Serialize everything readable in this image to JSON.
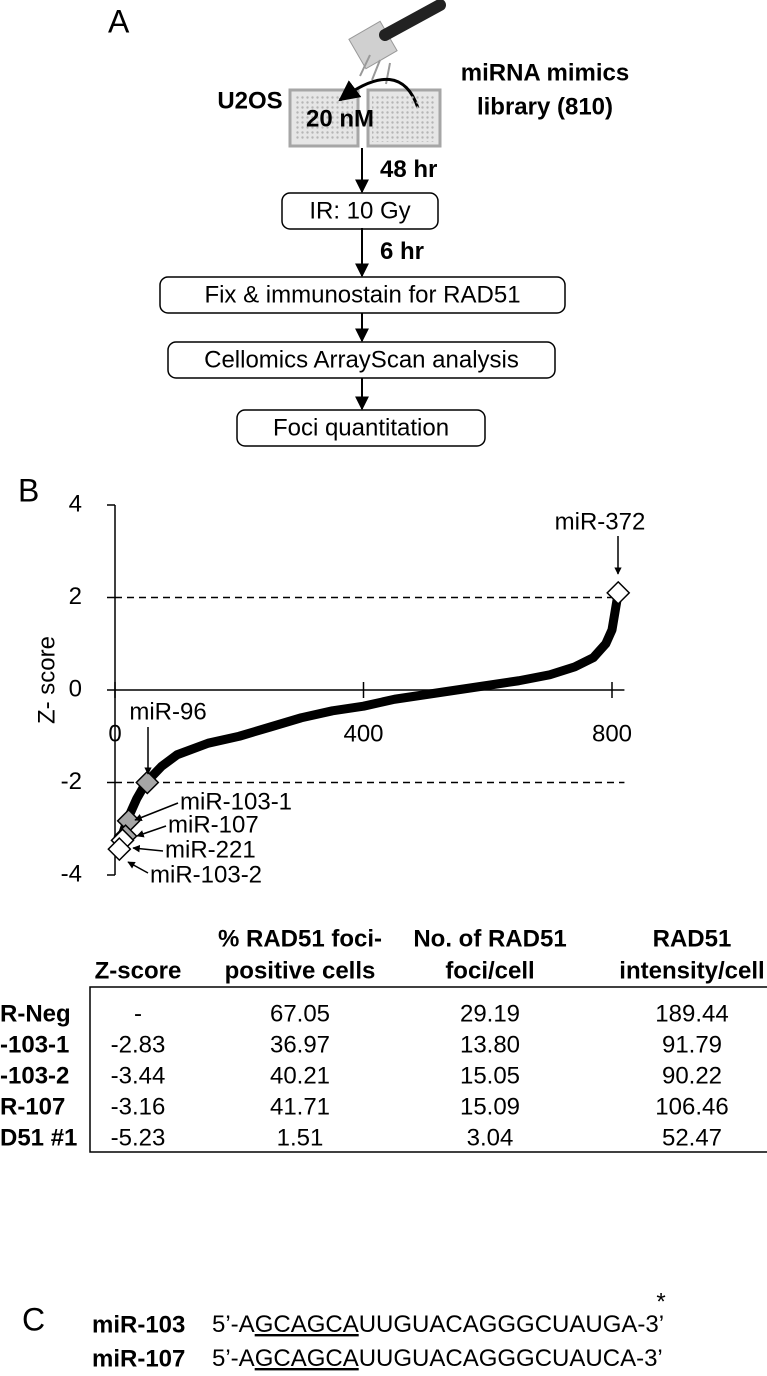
{
  "panel_a": {
    "label": "A",
    "left_label": "U2OS",
    "right_label": [
      "miRNA mimics",
      "library (810)"
    ],
    "dose": "20 nM",
    "steps": [
      {
        "arrow": "48 hr",
        "box": "IR: 10 Gy"
      },
      {
        "arrow": "6 hr",
        "box": "Fix & immunostain for RAD51"
      },
      {
        "arrow": null,
        "box": "Cellomics ArrayScan analysis"
      },
      {
        "arrow": null,
        "box": "Foci quantitation"
      }
    ]
  },
  "chart_data": {
    "type": "line",
    "panel_label": "B",
    "ylabel": "Z- score",
    "x": [
      5,
      10,
      20,
      35,
      50,
      75,
      100,
      150,
      200,
      250,
      300,
      350,
      400,
      450,
      500,
      550,
      600,
      650,
      700,
      740,
      770,
      790,
      800,
      805,
      810
    ],
    "values": [
      -3.4,
      -3.2,
      -2.8,
      -2.35,
      -2.0,
      -1.65,
      -1.4,
      -1.15,
      -1.0,
      -0.8,
      -0.6,
      -0.45,
      -0.35,
      -0.2,
      -0.1,
      0.0,
      0.1,
      0.2,
      0.33,
      0.5,
      0.7,
      1.0,
      1.3,
      1.7,
      2.1
    ],
    "color": "#000000",
    "xlim": [
      0,
      820
    ],
    "ylim": [
      -4,
      4
    ],
    "xticks": [
      0,
      400,
      800
    ],
    "yticks": [
      -4,
      -2,
      0,
      2,
      4
    ],
    "threshold_lines": [
      2,
      -2
    ],
    "annotations": [
      {
        "text": "miR-372",
        "x": 810,
        "y": 2.1,
        "color": "#ffffff"
      },
      {
        "text": "miR-96",
        "x": 52,
        "y": -2.0,
        "color": "#a6a6a6"
      },
      {
        "text": "miR-103-1",
        "x": 22,
        "y": -2.83,
        "color": "#a6a6a6"
      },
      {
        "text": "miR-107",
        "x": 17,
        "y": -3.16,
        "color": "#a6a6a6"
      },
      {
        "text": "miR-221",
        "x": 12,
        "y": -3.25,
        "color": "#ffffff"
      },
      {
        "text": "miR-103-2",
        "x": 7,
        "y": -3.44,
        "color": "#ffffff"
      }
    ]
  },
  "table": {
    "header": [
      [
        "Z-score"
      ],
      [
        "% RAD51 foci-",
        "positive cells"
      ],
      [
        "No. of RAD51",
        "foci/cell"
      ],
      [
        "RAD51",
        "intensity/cell"
      ]
    ],
    "rows": [
      [
        "R-Neg",
        "-",
        "67.05",
        "29.19",
        "189.44"
      ],
      [
        "-103-1",
        "-2.83",
        "36.97",
        "13.80",
        "91.79"
      ],
      [
        "-103-2",
        "-3.44",
        "40.21",
        "15.05",
        "90.22"
      ],
      [
        "R-107",
        "-3.16",
        "41.71",
        "15.09",
        "106.46"
      ],
      [
        "D51 #1",
        "-5.23",
        "1.51",
        "3.04",
        "52.47"
      ]
    ]
  },
  "panel_c": {
    "label": "C",
    "mark": "*",
    "sequences": [
      {
        "name": "miR-103",
        "prefix": "5’-A",
        "seed": "GCAGCA",
        "middle": "UUGUACAGGGCUAU",
        "variant": "G",
        "suffix": "A-3’"
      },
      {
        "name": "miR-107",
        "prefix": "5’-A",
        "seed": "GCAGCA",
        "middle": "UUGUACAGGGCUAU",
        "variant": "C",
        "suffix": "A-3’"
      }
    ]
  }
}
